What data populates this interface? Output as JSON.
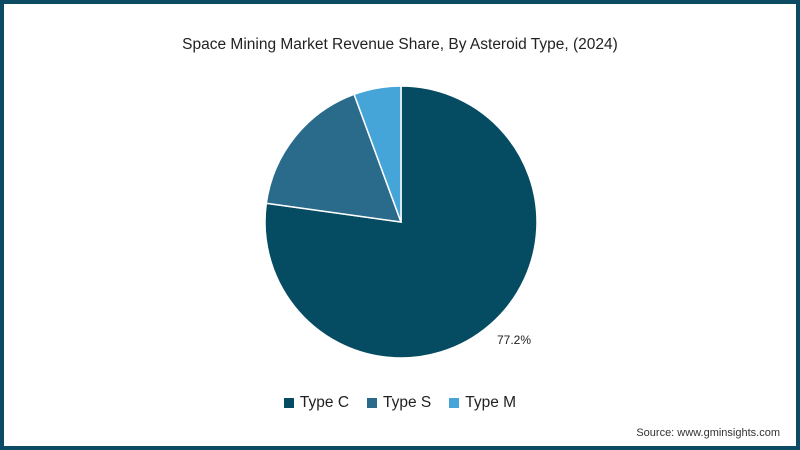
{
  "chart_data": {
    "type": "pie",
    "title": "Space Mining Market Revenue Share, By Asteroid Type, (2024)",
    "categories": [
      "Type C",
      "Type S",
      "Type M"
    ],
    "values": [
      77.2,
      17.2,
      5.6
    ],
    "colors": [
      "#054c63",
      "#2a6b8c",
      "#45a5d8"
    ],
    "data_labels": [
      {
        "category": "Type C",
        "text": "77.2%"
      }
    ],
    "start_angle": "12 o'clock",
    "direction": "clockwise",
    "legend_position": "bottom",
    "source": "Source: www.gminsights.com"
  },
  "header": {
    "title": "Space Mining Market Revenue Share, By Asteroid Type, (2024)"
  },
  "label_c": "77.2%",
  "legend": [
    {
      "label": "Type C",
      "color": "#054c63"
    },
    {
      "label": "Type S",
      "color": "#2a6b8c"
    },
    {
      "label": "Type M",
      "color": "#45a5d8"
    }
  ],
  "footer": {
    "source": "Source: www.gminsights.com"
  }
}
